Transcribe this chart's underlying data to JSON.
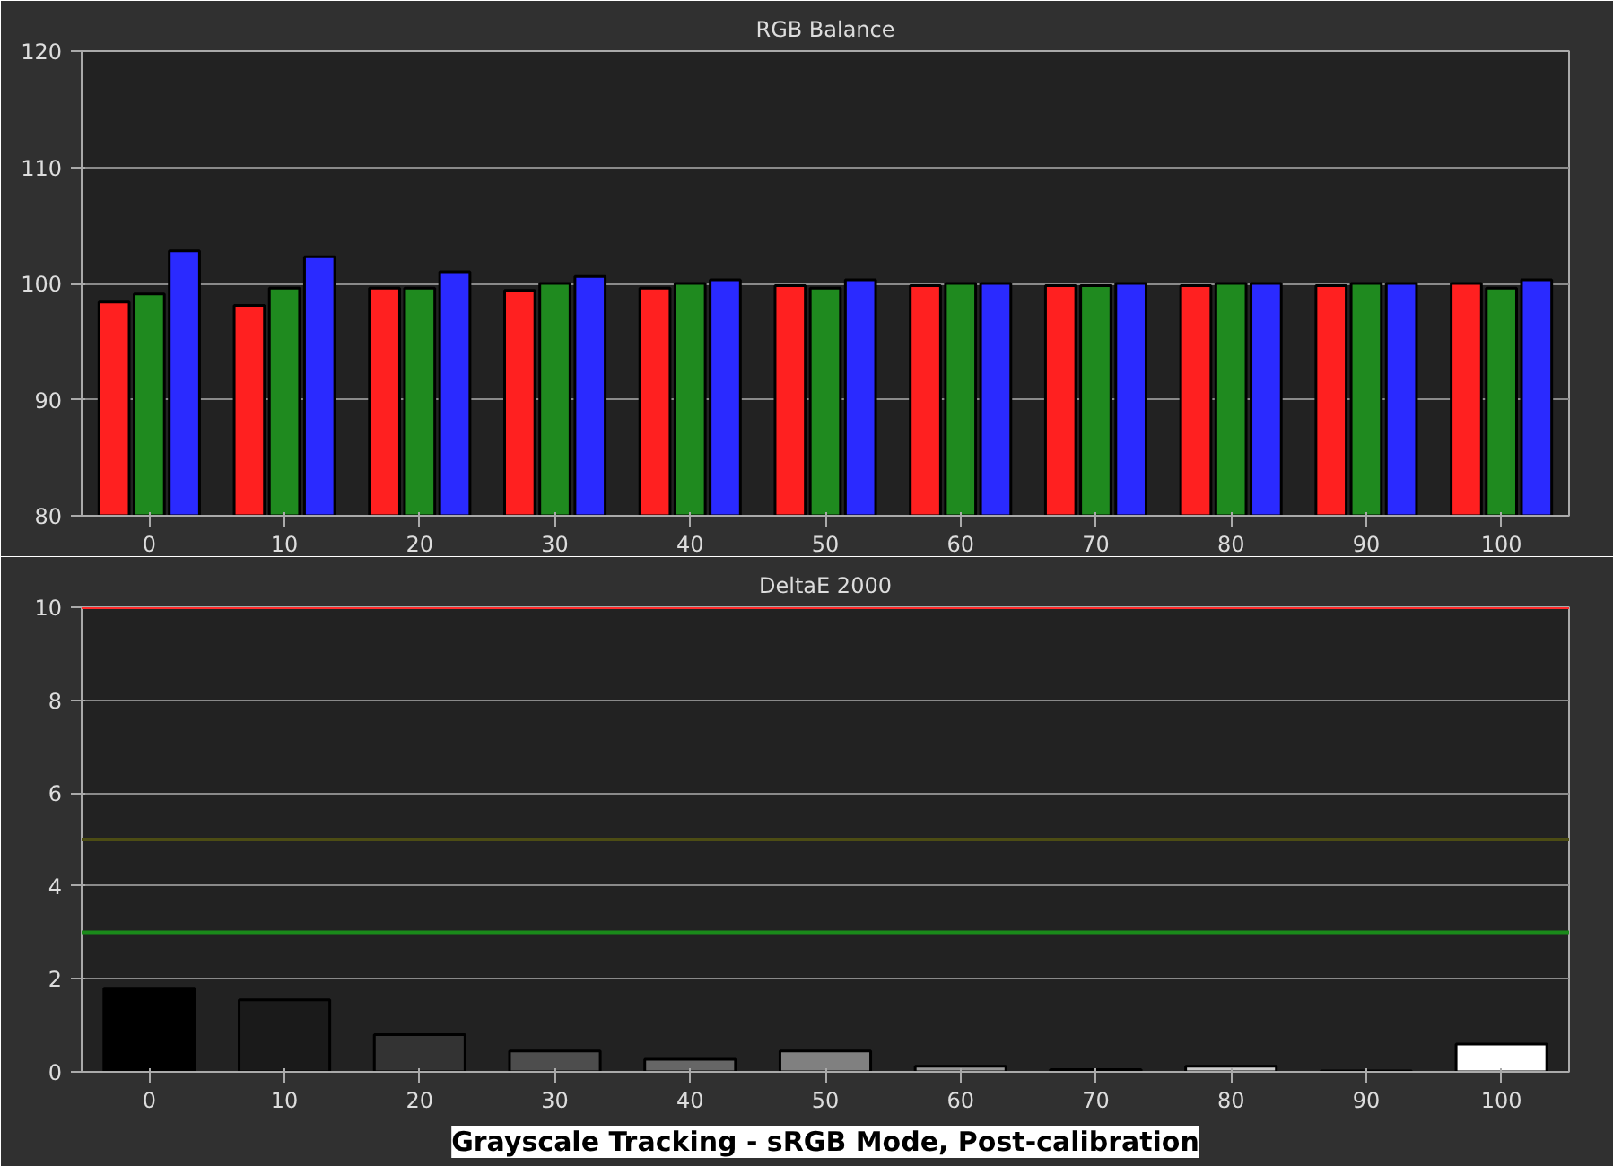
{
  "chart_data": [
    {
      "type": "bar",
      "title": "RGB Balance",
      "categories": [
        "0",
        "10",
        "20",
        "30",
        "40",
        "50",
        "60",
        "70",
        "80",
        "90",
        "100"
      ],
      "series": [
        {
          "color": "#ff2020",
          "values": [
            98.4,
            98.1,
            99.6,
            99.4,
            99.6,
            99.8,
            99.8,
            99.8,
            99.8,
            99.8,
            100.0
          ]
        },
        {
          "color": "#1f8a1f",
          "values": [
            99.1,
            99.6,
            99.6,
            100.0,
            100.0,
            99.6,
            100.0,
            99.8,
            100.0,
            100.0,
            99.6
          ]
        },
        {
          "color": "#2a2aff",
          "values": [
            102.8,
            102.3,
            101.0,
            100.6,
            100.3,
            100.3,
            100.0,
            100.0,
            100.0,
            100.0,
            100.3
          ]
        }
      ],
      "ylim": [
        80,
        120
      ],
      "yticks": [
        80,
        90,
        100,
        110,
        120
      ],
      "grid": "y"
    },
    {
      "type": "bar",
      "title": "DeltaE 2000",
      "categories": [
        "0",
        "10",
        "20",
        "30",
        "40",
        "50",
        "60",
        "70",
        "80",
        "90",
        "100"
      ],
      "values": [
        1.8,
        1.55,
        0.8,
        0.45,
        0.27,
        0.45,
        0.12,
        0.05,
        0.12,
        0.02,
        0.6
      ],
      "colors": [
        "#000000",
        "#1a1a1a",
        "#333333",
        "#4d4d4d",
        "#666666",
        "#808080",
        "#999999",
        "#b3b3b3",
        "#cccccc",
        "#e6e6e6",
        "#ffffff"
      ],
      "ylim": [
        0,
        10
      ],
      "yticks": [
        0,
        2,
        4,
        6,
        8,
        10
      ],
      "grid": "y",
      "ref_lines": [
        {
          "axis": "y",
          "value": 10,
          "color": "#ff2a2a"
        },
        {
          "axis": "y",
          "value": 5,
          "color": "#4d4d14"
        },
        {
          "axis": "y",
          "value": 3,
          "color": "#1a8a1a"
        }
      ],
      "annotations": [
        "Grayscale Tracking - sRGB Mode, Post-calibration"
      ]
    }
  ]
}
